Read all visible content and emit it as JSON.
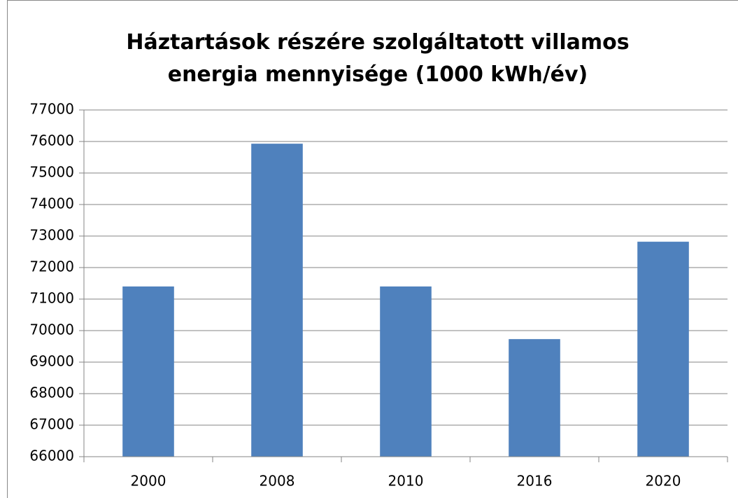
{
  "chart_data": {
    "type": "bar",
    "title": "Háztartások részére szolgáltatott villamos energia mennyisége (1000 kWh/év)",
    "categories": [
      "2000",
      "2008",
      "2010",
      "2016",
      "2020"
    ],
    "values": [
      71400,
      75930,
      71400,
      69730,
      72820
    ],
    "color": "#4f81bd",
    "ylim": [
      66000,
      77000
    ],
    "yticks": [
      66000,
      67000,
      68000,
      69000,
      70000,
      71000,
      72000,
      73000,
      74000,
      75000,
      76000,
      77000
    ],
    "grid": true
  }
}
